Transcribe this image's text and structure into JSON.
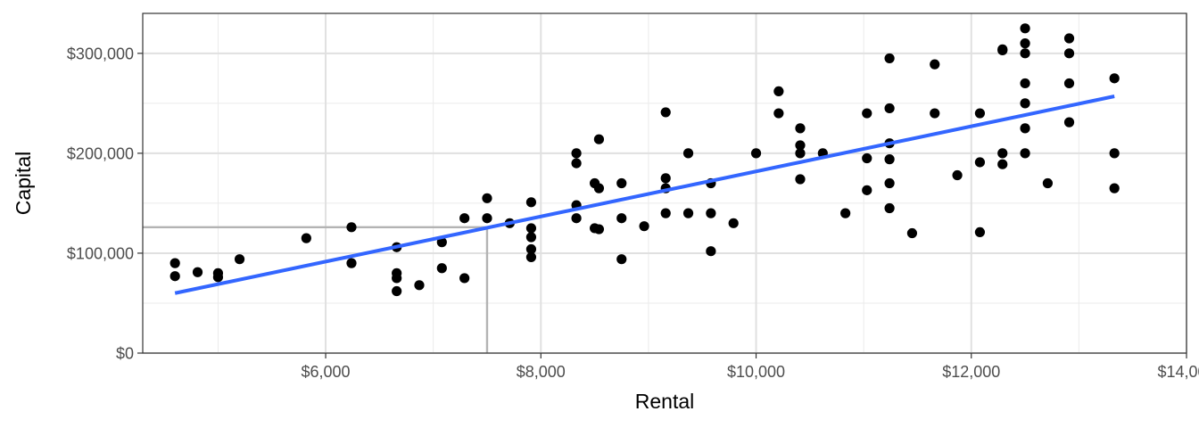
{
  "chart_data": {
    "type": "scatter",
    "title": "",
    "xlabel": "Rental",
    "ylabel": "Capital",
    "xlim": [
      4300,
      14000
    ],
    "ylim": [
      0,
      340000
    ],
    "x_ticks": [
      {
        "value": 6000,
        "label": "$6,000"
      },
      {
        "value": 8000,
        "label": "$8,000"
      },
      {
        "value": 10000,
        "label": "$10,000"
      },
      {
        "value": 12000,
        "label": "$12,000"
      },
      {
        "value": 14000,
        "label": "$14,000"
      }
    ],
    "y_ticks": [
      {
        "value": 0,
        "label": "$0"
      },
      {
        "value": 100000,
        "label": "$100,000"
      },
      {
        "value": 200000,
        "label": "$200,000"
      },
      {
        "value": 300000,
        "label": "$300,000"
      }
    ],
    "grid": true,
    "points": [
      [
        4600,
        90000
      ],
      [
        4600,
        77000
      ],
      [
        4810,
        81000
      ],
      [
        5000,
        80000
      ],
      [
        5000,
        76000
      ],
      [
        5200,
        94000
      ],
      [
        5820,
        115000
      ],
      [
        6240,
        126000
      ],
      [
        6240,
        90000
      ],
      [
        6660,
        106000
      ],
      [
        6660,
        80000
      ],
      [
        6660,
        75000
      ],
      [
        6660,
        62000
      ],
      [
        6870,
        68000
      ],
      [
        7080,
        111000
      ],
      [
        7080,
        85000
      ],
      [
        7290,
        135000
      ],
      [
        7290,
        75000
      ],
      [
        7500,
        155000
      ],
      [
        7500,
        135000
      ],
      [
        7710,
        130000
      ],
      [
        7910,
        151000
      ],
      [
        7910,
        125000
      ],
      [
        7910,
        116000
      ],
      [
        7910,
        104000
      ],
      [
        7910,
        96000
      ],
      [
        8330,
        200000
      ],
      [
        8330,
        190000
      ],
      [
        8330,
        148000
      ],
      [
        8330,
        135000
      ],
      [
        8500,
        170000
      ],
      [
        8500,
        125000
      ],
      [
        8540,
        214000
      ],
      [
        8540,
        165000
      ],
      [
        8540,
        124000
      ],
      [
        8750,
        170000
      ],
      [
        8750,
        135000
      ],
      [
        8750,
        94000
      ],
      [
        8960,
        127000
      ],
      [
        9160,
        241000
      ],
      [
        9160,
        175000
      ],
      [
        9160,
        165000
      ],
      [
        9160,
        140000
      ],
      [
        9370,
        200000
      ],
      [
        9370,
        140000
      ],
      [
        9580,
        170000
      ],
      [
        9580,
        140000
      ],
      [
        9580,
        102000
      ],
      [
        9790,
        130000
      ],
      [
        10000,
        200000
      ],
      [
        10210,
        262000
      ],
      [
        10210,
        240000
      ],
      [
        10410,
        225000
      ],
      [
        10410,
        208000
      ],
      [
        10410,
        200000
      ],
      [
        10410,
        174000
      ],
      [
        10620,
        200000
      ],
      [
        10830,
        140000
      ],
      [
        11030,
        240000
      ],
      [
        11030,
        195000
      ],
      [
        11030,
        163000
      ],
      [
        11240,
        295000
      ],
      [
        11240,
        245000
      ],
      [
        11240,
        210000
      ],
      [
        11240,
        194000
      ],
      [
        11240,
        170000
      ],
      [
        11240,
        145000
      ],
      [
        11450,
        120000
      ],
      [
        11660,
        289000
      ],
      [
        11660,
        240000
      ],
      [
        11870,
        178000
      ],
      [
        12080,
        240000
      ],
      [
        12080,
        191000
      ],
      [
        12080,
        121000
      ],
      [
        12290,
        304000
      ],
      [
        12290,
        303000
      ],
      [
        12290,
        200000
      ],
      [
        12290,
        189000
      ],
      [
        12500,
        325000
      ],
      [
        12500,
        310000
      ],
      [
        12500,
        300000
      ],
      [
        12500,
        270000
      ],
      [
        12500,
        250000
      ],
      [
        12500,
        225000
      ],
      [
        12500,
        200000
      ],
      [
        12710,
        170000
      ],
      [
        12910,
        315000
      ],
      [
        12910,
        300000
      ],
      [
        12910,
        270000
      ],
      [
        12910,
        231000
      ],
      [
        13330,
        275000
      ],
      [
        13330,
        200000
      ],
      [
        13330,
        165000
      ]
    ],
    "trend_line": {
      "x": [
        4600,
        13330
      ],
      "y": [
        60000,
        257000
      ],
      "color": "#3366ff"
    },
    "reference_point": {
      "x": 7500,
      "y": 126000,
      "color": "#b3b3b3"
    },
    "point_color": "#000000"
  }
}
